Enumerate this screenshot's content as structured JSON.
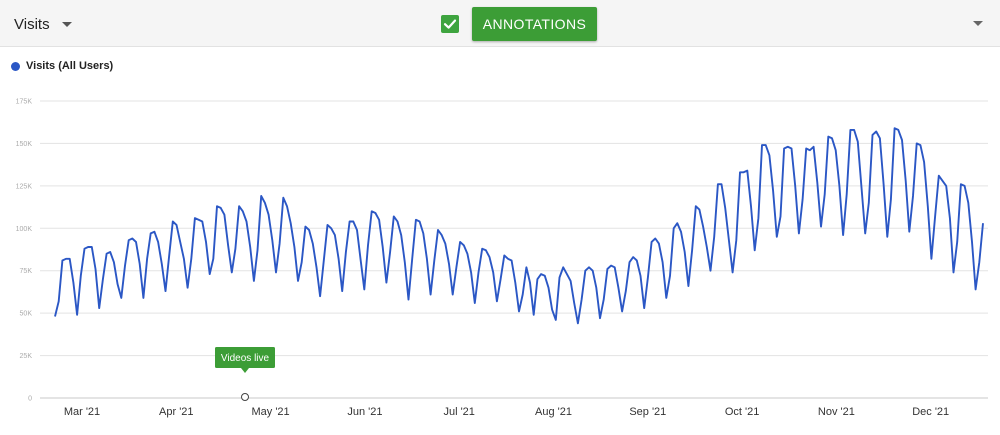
{
  "toolbar": {
    "metric_label": "Visits",
    "annotations_checked": true,
    "annotations_label": "ANNOTATIONS",
    "icons": [
      "chevron-down-icon",
      "checkmark-icon",
      "chevron-down-icon"
    ]
  },
  "colors": {
    "series": "#2b57c5",
    "accent_green": "#3c9d36",
    "grid": "#e3e3e3"
  },
  "chart_data": {
    "type": "line",
    "legend": "top-left",
    "grid": true,
    "series": [
      {
        "name": "Visits (All Users)",
        "values": [
          48,
          57,
          81,
          82,
          82,
          68,
          49,
          72,
          88,
          89,
          89,
          76,
          53,
          70,
          85,
          86,
          80,
          67,
          59,
          78,
          93,
          94,
          92,
          79,
          59,
          82,
          97,
          98,
          92,
          79,
          63,
          84,
          104,
          102,
          92,
          82,
          65,
          82,
          106,
          105,
          104,
          92,
          73,
          82,
          113,
          112,
          108,
          90,
          74,
          88,
          113,
          110,
          104,
          89,
          69,
          87,
          119,
          115,
          108,
          93,
          74,
          91,
          118,
          113,
          103,
          89,
          69,
          80,
          101,
          99,
          91,
          77,
          60,
          81,
          102,
          100,
          96,
          82,
          63,
          86,
          104,
          104,
          99,
          81,
          64,
          90,
          110,
          109,
          105,
          89,
          68,
          86,
          107,
          104,
          96,
          80,
          58,
          82,
          105,
          104,
          97,
          82,
          61,
          81,
          99,
          96,
          91,
          79,
          61,
          77,
          92,
          90,
          85,
          74,
          56,
          74,
          88,
          87,
          83,
          74,
          57,
          70,
          84,
          82,
          81,
          68,
          51,
          61,
          77,
          68,
          49,
          70,
          73,
          72,
          65,
          52,
          46,
          71,
          77,
          73,
          69,
          56,
          44,
          58,
          75,
          77,
          75,
          65,
          47,
          58,
          76,
          78,
          77,
          65,
          51,
          63,
          80,
          83,
          81,
          72,
          53,
          71,
          92,
          94,
          91,
          80,
          59,
          72,
          100,
          103,
          98,
          86,
          66,
          87,
          113,
          111,
          101,
          89,
          75,
          95,
          126,
          126,
          112,
          93,
          74,
          93,
          133,
          133,
          134,
          113,
          87,
          106,
          149,
          149,
          143,
          122,
          95,
          107,
          147,
          148,
          147,
          125,
          97,
          117,
          147,
          146,
          148,
          127,
          101,
          120,
          154,
          153,
          146,
          125,
          96,
          120,
          158,
          158,
          151,
          124,
          97,
          115,
          155,
          157,
          153,
          126,
          95,
          117,
          159,
          158,
          152,
          128,
          98,
          119,
          150,
          149,
          139,
          113,
          82,
          107,
          131,
          128,
          125,
          106,
          74,
          92,
          126,
          125,
          115,
          92,
          64,
          80,
          103
        ]
      }
    ],
    "x_tick_labels": [
      "Mar '21",
      "Apr '21",
      "May '21",
      "Jun '21",
      "Jul '21",
      "Aug '21",
      "Sep '21",
      "Oct '21",
      "Nov '21",
      "Dec '21"
    ],
    "y_tick_labels": [
      "0",
      "25K",
      "50K",
      "75K",
      "100K",
      "125K",
      "150K",
      "175K"
    ],
    "y_unit": "K",
    "ylim": [
      0,
      175
    ],
    "annotations": [
      {
        "label": "Videos live",
        "date": "Apr 21"
      }
    ]
  }
}
